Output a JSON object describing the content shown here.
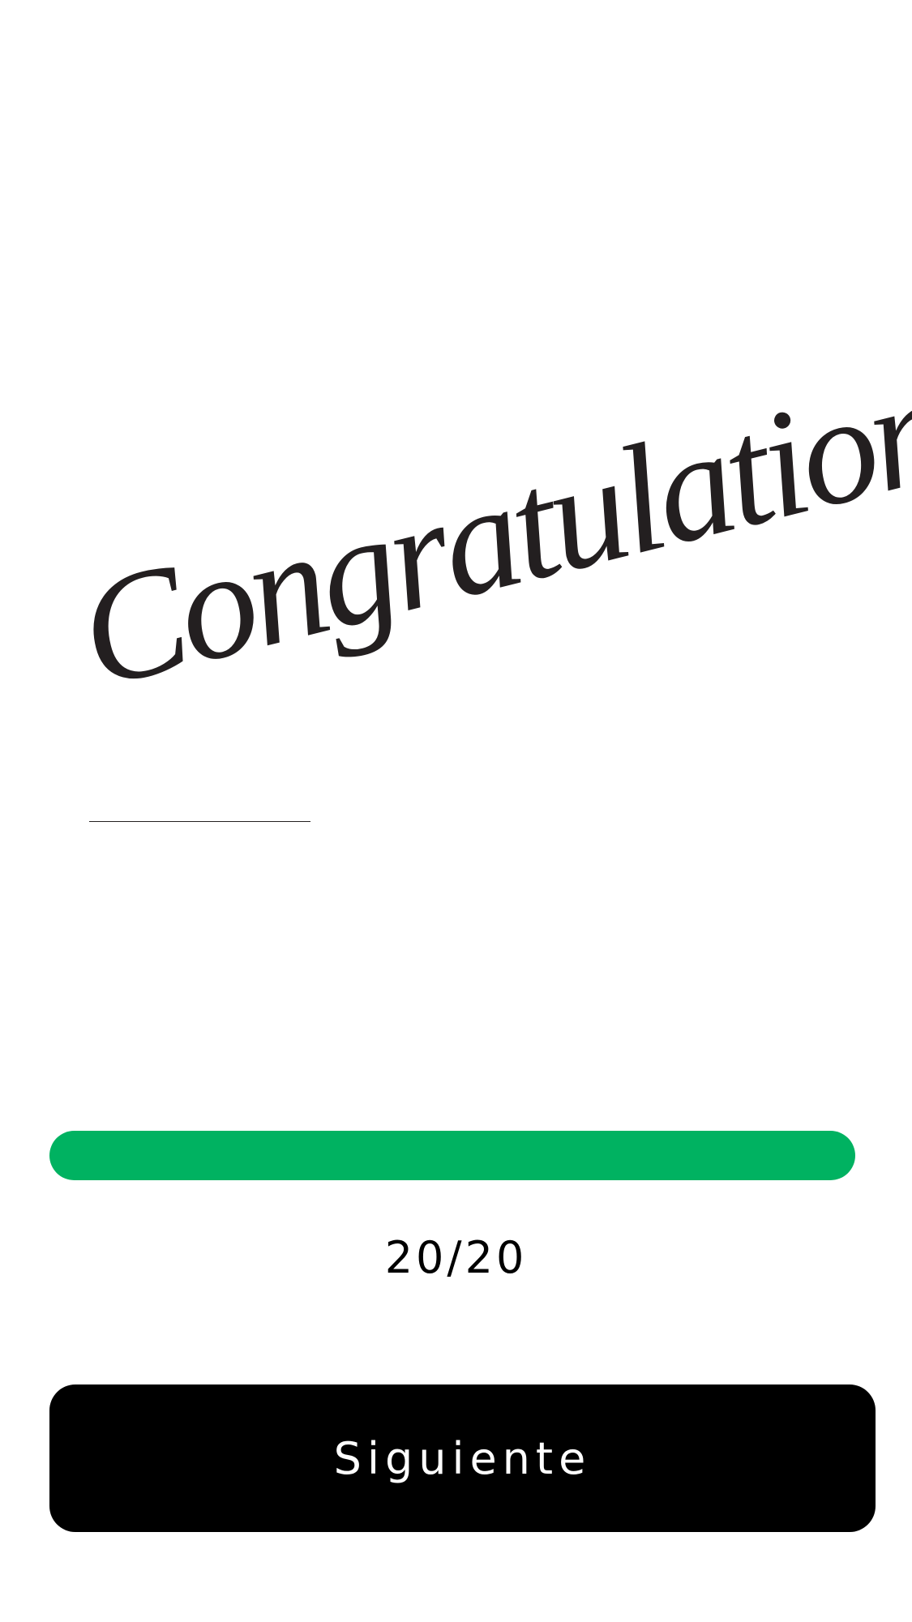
{
  "headline": "Congratulations",
  "progress": {
    "label": "20/20"
  },
  "button": {
    "label": "Siguiente"
  }
}
